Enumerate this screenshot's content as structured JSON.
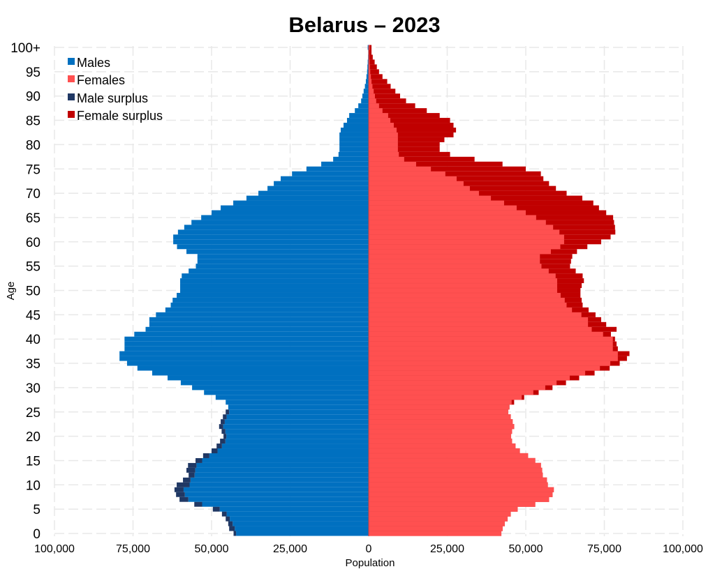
{
  "chart_data": {
    "type": "bar",
    "orientation": "horizontal-population-pyramid",
    "title": "Belarus – 2023",
    "xlabel": "Population",
    "ylabel": "Age",
    "xlim": [
      -100000,
      100000
    ],
    "x_tick_labels": [
      "100,000",
      "75,000",
      "50,000",
      "25,000",
      "0",
      "25,000",
      "50,000",
      "75,000",
      "100,000"
    ],
    "x_tick_values": [
      -100000,
      -75000,
      -50000,
      -25000,
      0,
      25000,
      50000,
      75000,
      100000
    ],
    "y_tick_labels": [
      "0",
      "5",
      "10",
      "15",
      "20",
      "25",
      "30",
      "35",
      "40",
      "45",
      "50",
      "55",
      "60",
      "65",
      "70",
      "75",
      "80",
      "85",
      "90",
      "95",
      "100+"
    ],
    "grid": true,
    "legend_position": "top-left",
    "legend": [
      "Males",
      "Females",
      "Male surplus",
      "Female surplus"
    ],
    "colors": {
      "males": "#0070C0",
      "females": "#FF5050",
      "male_surplus": "#203864",
      "female_surplus": "#C00000"
    },
    "ages": "0..100+ single years",
    "series": [
      {
        "name": "Males",
        "values": [
          43000,
          44400,
          44700,
          45500,
          46700,
          49600,
          55500,
          60200,
          61300,
          61800,
          61100,
          59100,
          57300,
          58000,
          57500,
          55100,
          52700,
          50000,
          48400,
          47300,
          46200,
          46800,
          47600,
          47100,
          46400,
          45500,
          44700,
          45500,
          48700,
          52400,
          56200,
          59800,
          64000,
          68900,
          73600,
          76900,
          79300,
          79300,
          77700,
          77700,
          77700,
          74600,
          71000,
          69800,
          69800,
          67700,
          64700,
          63000,
          62400,
          61100,
          60000,
          60000,
          60000,
          59500,
          57300,
          55000,
          54500,
          54500,
          58000,
          61000,
          62200,
          62200,
          60700,
          58700,
          56400,
          53300,
          50000,
          47100,
          43100,
          38900,
          35100,
          32200,
          30200,
          28000,
          24400,
          19800,
          15100,
          11300,
          9600,
          9300,
          9300,
          9300,
          9300,
          8900,
          8000,
          6900,
          6200,
          4400,
          3300,
          2400,
          2000,
          1600,
          1200,
          900,
          700,
          500,
          400,
          300,
          200,
          150,
          300
        ]
      },
      {
        "name": "Females",
        "values": [
          42200,
          42600,
          43300,
          44200,
          45200,
          47400,
          53000,
          57400,
          58500,
          58900,
          57000,
          56700,
          55400,
          55200,
          54800,
          53000,
          50700,
          48100,
          46700,
          45600,
          45300,
          45600,
          46300,
          45800,
          45200,
          44400,
          44800,
          46300,
          49500,
          54100,
          58500,
          62800,
          67000,
          71900,
          76700,
          79900,
          82200,
          83000,
          79300,
          78900,
          78400,
          77100,
          78900,
          75600,
          74000,
          72200,
          70000,
          68100,
          67800,
          67400,
          67400,
          67800,
          68500,
          68100,
          65900,
          64100,
          64400,
          64800,
          66300,
          69600,
          74000,
          77000,
          78500,
          78400,
          78100,
          77800,
          75600,
          73300,
          71500,
          68000,
          63000,
          59600,
          57400,
          55600,
          54800,
          50000,
          42600,
          33700,
          25900,
          22600,
          22600,
          24100,
          27000,
          27800,
          27000,
          25900,
          22600,
          18500,
          14800,
          11900,
          10000,
          8500,
          7000,
          5900,
          4400,
          3300,
          2600,
          1900,
          1300,
          900,
          900
        ]
      }
    ]
  }
}
